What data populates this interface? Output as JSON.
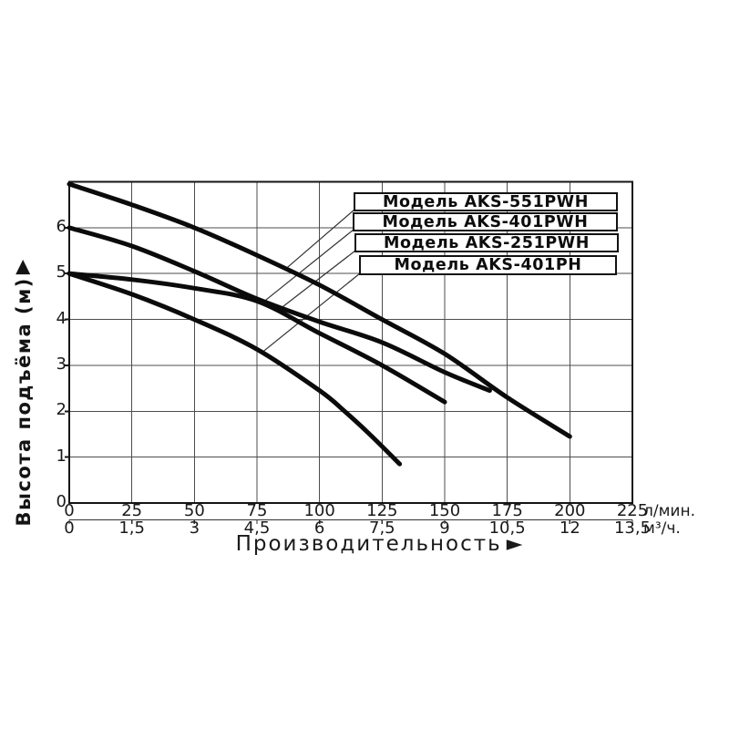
{
  "chart_data": {
    "type": "line",
    "title": "",
    "background": "#ffffff",
    "curve_color": "#0b0b0b",
    "grid_color": "#4d4d4d",
    "frame_color": "#151515",
    "leader_line_color": "#333333",
    "x_axis": {
      "label": "Производительность",
      "label_arrow": "►",
      "primary_unit": "л/мин.",
      "secondary_unit": "м³/ч.",
      "primary_ticks": [
        "0",
        "25",
        "50",
        "75",
        "100",
        "125",
        "150",
        "175",
        "200",
        "225"
      ],
      "secondary_ticks": [
        "0",
        "1,5",
        "3",
        "4,5",
        "6",
        "7,5",
        "9",
        "10,5",
        "12",
        "13,5"
      ],
      "tick_step_lmin": 25,
      "range_lmin": [
        0,
        225
      ]
    },
    "y_axis": {
      "label": "Высота подъёма (м)",
      "label_arrow": "▲",
      "ticks": [
        "0",
        "1",
        "2",
        "3",
        "4",
        "5",
        "6"
      ],
      "range_m": [
        0,
        7
      ],
      "grid_step_m": 1
    },
    "legend_position": "top-right-inside",
    "series": [
      {
        "name": "Модель AKS-551PWH",
        "points_lmin_m": [
          [
            0,
            6.95
          ],
          [
            25,
            6.5
          ],
          [
            50,
            6.0
          ],
          [
            75,
            5.4
          ],
          [
            100,
            4.75
          ],
          [
            125,
            4.0
          ],
          [
            150,
            3.25
          ],
          [
            175,
            2.3
          ],
          [
            200,
            1.45
          ]
        ]
      },
      {
        "name": "Модель AKS-401PWH",
        "points_lmin_m": [
          [
            0,
            6.0
          ],
          [
            25,
            5.6
          ],
          [
            50,
            5.05
          ],
          [
            75,
            4.45
          ],
          [
            100,
            3.95
          ],
          [
            125,
            3.5
          ],
          [
            150,
            2.85
          ],
          [
            168,
            2.45
          ]
        ]
      },
      {
        "name": "Модель AKS-251PWH",
        "points_lmin_m": [
          [
            0,
            5.0
          ],
          [
            25,
            4.87
          ],
          [
            50,
            4.68
          ],
          [
            75,
            4.4
          ],
          [
            100,
            3.7
          ],
          [
            125,
            3.0
          ],
          [
            150,
            2.2
          ]
        ]
      },
      {
        "name": "Модель AKS-401PH",
        "points_lmin_m": [
          [
            0,
            5.0
          ],
          [
            25,
            4.55
          ],
          [
            50,
            4.0
          ],
          [
            75,
            3.35
          ],
          [
            100,
            2.45
          ],
          [
            110,
            2.0
          ],
          [
            120,
            1.5
          ],
          [
            132,
            0.85
          ]
        ]
      }
    ],
    "leader_targets_lmin_m": [
      [
        86,
        5.08
      ],
      [
        78,
        4.4
      ],
      [
        83,
        4.18
      ],
      [
        77,
        3.28
      ]
    ]
  }
}
